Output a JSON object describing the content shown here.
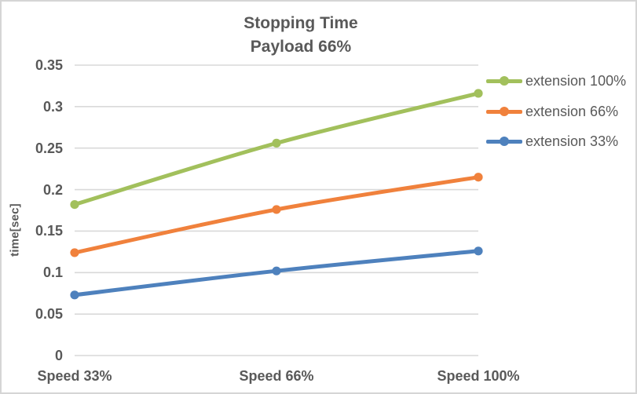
{
  "chart_data": {
    "type": "line",
    "title": "Stopping Time",
    "subtitle": "Payload 66%",
    "ylabel": "time[sec]",
    "xlabel": "",
    "categories": [
      "Speed 33%",
      "Speed 66%",
      "Speed 100%"
    ],
    "y_ticks": [
      "0",
      "0.05",
      "0.1",
      "0.15",
      "0.2",
      "0.25",
      "0.3",
      "0.35"
    ],
    "ylim": [
      0,
      0.35
    ],
    "grid": true,
    "smooth_lines": true,
    "markers": "circle",
    "legend_position": "right",
    "series": [
      {
        "name": "extension 100%",
        "color": "#A2C05C",
        "values": [
          0.182,
          0.256,
          0.316
        ]
      },
      {
        "name": "extension 66%",
        "color": "#F0813C",
        "values": [
          0.124,
          0.176,
          0.215
        ]
      },
      {
        "name": "extension 33%",
        "color": "#4E81BD",
        "values": [
          0.073,
          0.102,
          0.126
        ]
      }
    ],
    "colors": {
      "grid": "#D9D9D9",
      "text": "#595959",
      "border": "#D5D5D5",
      "background": "#FFFFFF"
    }
  }
}
